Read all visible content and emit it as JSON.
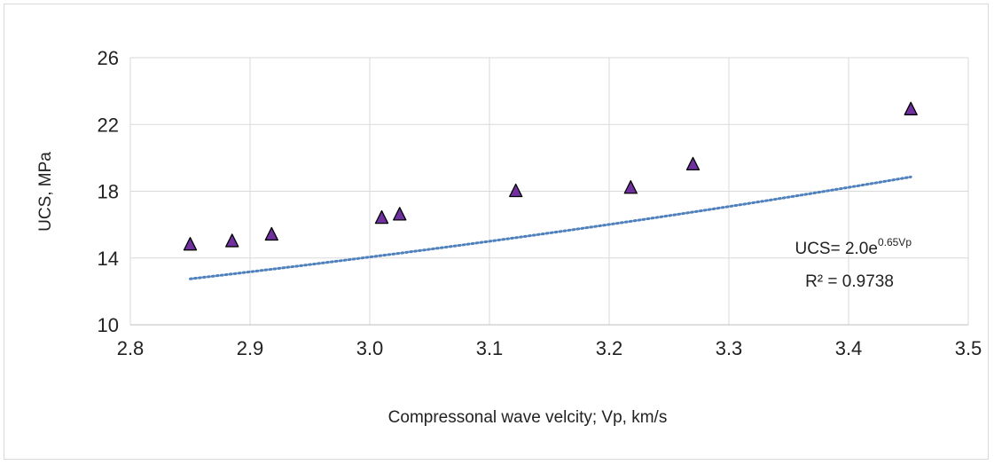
{
  "chart_data": {
    "type": "scatter",
    "xlabel": "Compressonal wave velcity; Vp, km/s",
    "ylabel": "UCS, MPa",
    "xlim": [
      2.8,
      3.5
    ],
    "ylim": [
      10,
      26
    ],
    "xticks": [
      "2.8",
      "2.9",
      "3.0",
      "3.1",
      "3.2",
      "3.3",
      "3.4",
      "3.5"
    ],
    "yticks": [
      "10",
      "14",
      "18",
      "22",
      "26"
    ],
    "grid": true,
    "marker": "triangle",
    "marker_color": "#7030a0",
    "trendline_color": "#4f81bd",
    "points": [
      {
        "x": 2.85,
        "y": 14.8
      },
      {
        "x": 2.885,
        "y": 15.0
      },
      {
        "x": 2.918,
        "y": 15.4
      },
      {
        "x": 3.01,
        "y": 16.4
      },
      {
        "x": 3.025,
        "y": 16.6
      },
      {
        "x": 3.122,
        "y": 18.0
      },
      {
        "x": 3.218,
        "y": 18.2
      },
      {
        "x": 3.27,
        "y": 19.6
      },
      {
        "x": 3.452,
        "y": 22.9
      }
    ],
    "trendline": {
      "type": "exponential",
      "equation_prefix": "UCS= 2.0e",
      "equation_exponent": "0.65Vp",
      "r_squared_label": "R² = 0.9738",
      "a": 2.0,
      "b": 0.65,
      "x_range": [
        2.85,
        3.452
      ]
    }
  }
}
